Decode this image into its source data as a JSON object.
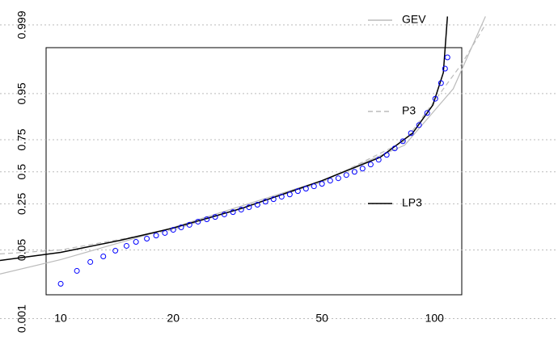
{
  "chart_data": {
    "type": "line",
    "xlog": true,
    "yscale": "probability",
    "grid": true,
    "xlim": [
      6.88,
      214
    ],
    "ylim": [
      0.0002,
      0.99985
    ],
    "xticks": [
      10,
      20,
      50,
      100
    ],
    "yticks": [
      0.001,
      0.05,
      0.25,
      0.5,
      0.75,
      0.95,
      0.999
    ],
    "points": {
      "color": "#0000ff",
      "x": [
        10,
        11.05,
        12.0,
        13.0,
        14.0,
        15.0,
        15.9,
        17.0,
        18.0,
        19.0,
        20.0,
        21.0,
        22.1,
        23.3,
        24.6,
        25.9,
        27.4,
        28.9,
        30.4,
        31.9,
        33.6,
        35.3,
        37.1,
        39.0,
        41.0,
        43.1,
        45.3,
        47.6,
        50.0,
        52.6,
        55.3,
        58.1,
        61.1,
        64.2,
        67.5,
        70.9,
        74.5,
        78.3,
        82.3,
        86.5,
        90.9,
        95.6,
        100.5,
        104.1,
        106.7,
        108.3
      ],
      "values": [
        0.0092,
        0.0185,
        0.0288,
        0.0375,
        0.0484,
        0.0595,
        0.07,
        0.0797,
        0.09,
        0.099,
        0.111,
        0.121,
        0.132,
        0.147,
        0.159,
        0.171,
        0.185,
        0.198,
        0.213,
        0.228,
        0.244,
        0.265,
        0.282,
        0.3,
        0.317,
        0.342,
        0.361,
        0.38,
        0.4,
        0.426,
        0.446,
        0.473,
        0.5,
        0.527,
        0.561,
        0.6,
        0.639,
        0.689,
        0.74,
        0.792,
        0.837,
        0.892,
        0.938,
        0.969,
        0.985,
        0.992
      ]
    },
    "series": [
      {
        "name": "GEV",
        "color": "#bbbbbb",
        "dash": false,
        "x": [
          6.88,
          10,
          20,
          50,
          83.2,
          112.2,
          136.9
        ],
        "values": [
          0.0157,
          0.0324,
          0.121,
          0.426,
          0.712,
          0.9596,
          0.99946
        ]
      },
      {
        "name": "P3",
        "color": "#bbbbbb",
        "dash": true,
        "x": [
          6.88,
          10,
          20,
          50,
          83.2,
          117.9,
          136.9
        ],
        "values": [
          0.0419,
          0.05,
          0.111,
          0.413,
          0.74,
          0.9879,
          0.99903
        ]
      },
      {
        "name": "LP3",
        "color": "#000000",
        "dash": false,
        "x": [
          6.88,
          10,
          14.5,
          20,
          30.7,
          50,
          71.6,
          87.4,
          99.0,
          105.6,
          108.3
        ],
        "values": [
          0.031,
          0.045,
          0.075,
          0.118,
          0.223,
          0.426,
          0.62,
          0.792,
          0.92,
          0.9815,
          0.99946
        ]
      }
    ]
  }
}
